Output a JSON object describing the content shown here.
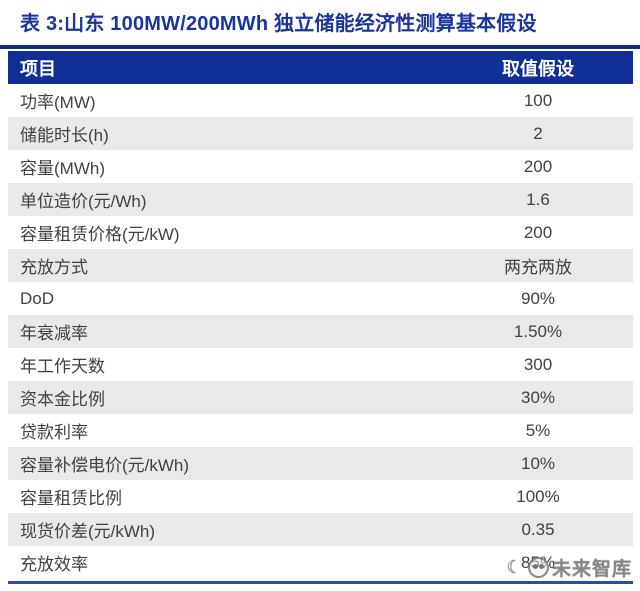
{
  "title": "表 3:山东 100MW/200MWh 独立储能经济性测算基本假设",
  "table": {
    "headers": [
      "项目",
      "取值假设"
    ],
    "rows": [
      {
        "label": "功率(MW)",
        "value": "100"
      },
      {
        "label": "储能时长(h)",
        "value": "2"
      },
      {
        "label": "容量(MWh)",
        "value": "200"
      },
      {
        "label": "单位造价(元/Wh)",
        "value": "1.6"
      },
      {
        "label": "容量租赁价格(元/kW)",
        "value": "200"
      },
      {
        "label": "充放方式",
        "value": "两充两放"
      },
      {
        "label": "DoD",
        "value": "90%"
      },
      {
        "label": "年衰减率",
        "value": "1.50%"
      },
      {
        "label": "年工作天数",
        "value": "300"
      },
      {
        "label": "资本金比例",
        "value": "30%"
      },
      {
        "label": "贷款利率",
        "value": "5%"
      },
      {
        "label": "容量补偿电价(元/kWh)",
        "value": "10%"
      },
      {
        "label": "容量租赁比例",
        "value": "100%"
      },
      {
        "label": "现货价差(元/kWh)",
        "value": "0.35"
      },
      {
        "label": "充放效率",
        "value": "85%"
      }
    ]
  },
  "watermark": {
    "text": "未来智库",
    "logo": "panda-logo"
  },
  "colors": {
    "title_blue": "#1a35a0",
    "header_bg": "#112f96",
    "rule_blue": "#132e85",
    "bottom_line": "#2a4cab",
    "row_gray": "#e9e9e7",
    "body_text": "#3f4245"
  }
}
